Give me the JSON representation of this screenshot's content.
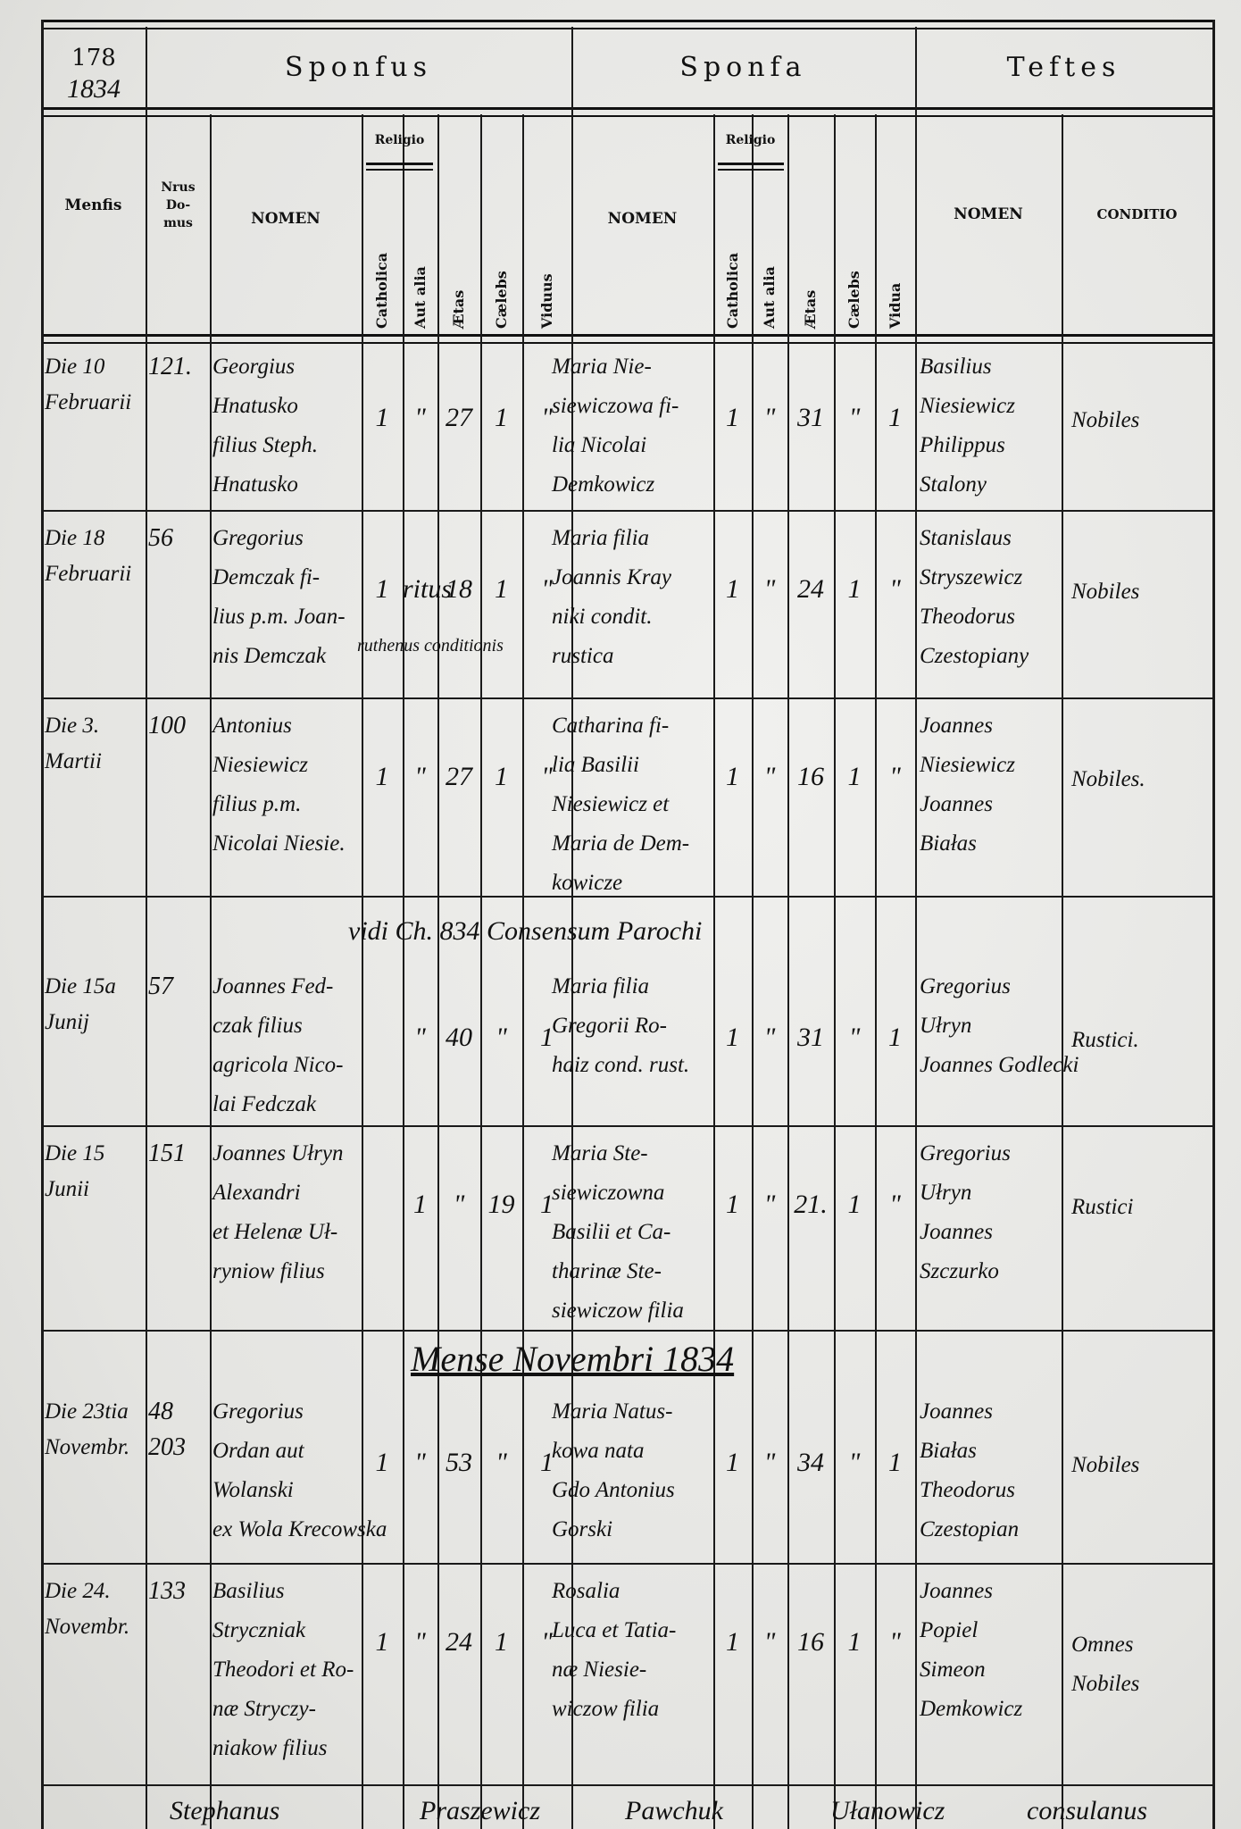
{
  "header": {
    "year_printed": "178",
    "year_handwritten": "1834",
    "sponsus": "Sponfus",
    "sponsa": "Sponfa",
    "testes": "Teftes",
    "mensis": "Menfis",
    "nrus_domus": "Nrus Do- mus",
    "groom_nomen": "NOMEN",
    "groom_religio": "Religio",
    "groom_catholica": "Catholica",
    "groom_aut_alia": "Aut alia",
    "groom_aetas": "Ætas",
    "groom_caelebs": "Cælebs",
    "groom_viduus": "Viduus",
    "bride_nomen": "NOMEN",
    "bride_religio": "Religio",
    "bride_catholica": "Catholica",
    "bride_aut_alia": "Aut alia",
    "bride_aetas": "Ætas",
    "bride_caelebs": "Cælebs",
    "bride_vidua": "Vidua",
    "testes_nomen": "NOMEN",
    "conditio": "CONDITIO"
  },
  "rows": [
    {
      "date": [
        "Die 10",
        "Februarii"
      ],
      "house": "121.",
      "groom": [
        "Georgius",
        "Hnatusko",
        "filius Steph.",
        "Hnatusko"
      ],
      "g": [
        "1",
        "\"",
        "27",
        "1",
        "\""
      ],
      "bride": [
        "Maria Nie-",
        "siewiczowa fi-",
        "lia Nicolai",
        "Demkowicz"
      ],
      "b": [
        "1",
        "\"",
        "31",
        "\"",
        "1"
      ],
      "witnesses": [
        "Basilius",
        "Niesiewicz",
        "Philippus",
        "Stalony"
      ],
      "conditio": [
        "Nobiles"
      ]
    },
    {
      "date": [
        "Die 18",
        "Februarii"
      ],
      "house": "56",
      "groom": [
        "Gregorius",
        "Demczak fi-",
        "lius p.m. Joan-",
        "nis Demczak"
      ],
      "g": [
        "1",
        "ritus",
        "18",
        "1",
        "\""
      ],
      "bride": [
        "Maria filia",
        "Joannis Kray",
        "niki condit.",
        "rustica"
      ],
      "b": [
        "1",
        "\"",
        "24",
        "1",
        "\""
      ],
      "witnesses": [
        "Stanislaus",
        "Stryszewicz",
        "Theodorus",
        "Czestopiany"
      ],
      "conditio": [
        "Nobiles"
      ],
      "extra": "ruthenus conditionis"
    },
    {
      "date": [
        "Die 3.",
        "Martii"
      ],
      "house": "100",
      "groom": [
        "Antonius",
        "Niesiewicz",
        "filius p.m.",
        "Nicolai Niesie."
      ],
      "g": [
        "1",
        "\"",
        "27",
        "1",
        "\""
      ],
      "bride": [
        "Catharina fi-",
        "lia Basilii",
        "Niesiewicz et",
        "Maria de Dem-",
        "kowicze"
      ],
      "b": [
        "1",
        "\"",
        "16",
        "1",
        "\""
      ],
      "witnesses": [
        "Joannes",
        "Niesiewicz",
        "Joannes",
        "Białas"
      ],
      "conditio": [
        "Nobiles."
      ]
    },
    {
      "note": "vidi Ch. 834 Consensum Parochi",
      "date": [
        "Die 15a",
        "Junij"
      ],
      "house": "57",
      "groom": [
        "Joannes Fed-",
        "czak filius",
        "agricola Nico-",
        "lai Fedczak"
      ],
      "g": [
        "\"",
        "40",
        "\"",
        "1"
      ],
      "bride": [
        "Maria filia",
        "Gregorii Ro-",
        "haiz cond. rust."
      ],
      "b": [
        "1",
        "\"",
        "31",
        "\"",
        "1"
      ],
      "witnesses": [
        "Gregorius",
        "Ułryn",
        "Joannes Godlecki"
      ],
      "conditio": [
        "Rustici."
      ]
    },
    {
      "date": [
        "Die 15",
        "Junii"
      ],
      "house": "151",
      "groom": [
        "Joannes Ułryn",
        "Alexandri",
        "et Helenæ Uł-",
        "ryniow filius"
      ],
      "g": [
        "1",
        "\"",
        "19",
        "1"
      ],
      "bride": [
        "Maria Ste-",
        "siewiczowna",
        "Basilii et Ca-",
        "tharinæ Ste-",
        "siewiczow filia"
      ],
      "b": [
        "1",
        "\"",
        "21.",
        "1",
        "\""
      ],
      "witnesses": [
        "Gregorius",
        "Ułryn",
        "Joannes",
        "Szczurko"
      ],
      "conditio": [
        "Rustici"
      ]
    },
    {
      "section": "Mense Novembri 1834",
      "date": [
        "Die 23tia",
        "Novembr."
      ],
      "house": "48 203",
      "groom": [
        "Gregorius",
        "Ordan aut",
        "Wolanski",
        "ex Wola Krecowska"
      ],
      "g": [
        "1",
        "\"",
        "53",
        "\"",
        "1"
      ],
      "bride": [
        "Maria Natus-",
        "kowa nata",
        "Gdo Antonius",
        "Gorski"
      ],
      "b": [
        "1",
        "\"",
        "34",
        "\"",
        "1"
      ],
      "witnesses": [
        "Joannes",
        "Białas",
        "Theodorus",
        "Czestopian"
      ],
      "conditio": [
        "Nobiles"
      ]
    },
    {
      "date": [
        "Die 24.",
        "Novembr."
      ],
      "house": "133",
      "groom": [
        "Basilius",
        "Stryczniak",
        "Theodori et Ro-",
        "næ Stryczy-",
        "niakow filius"
      ],
      "g": [
        "1",
        "\"",
        "24",
        "1",
        "\""
      ],
      "bride": [
        "Rosalia",
        "Luca et Tatia-",
        "næ Niesie-",
        "wiczow filia"
      ],
      "b": [
        "1",
        "\"",
        "16",
        "1",
        "\""
      ],
      "witnesses": [
        "Joannes",
        "Popiel",
        "Simeon",
        "Demkowicz"
      ],
      "conditio": [
        "Omnes",
        "Nobiles"
      ]
    }
  ],
  "footer_line": [
    "Stephanus",
    "Praszewicz",
    "Pawchuk",
    "Ułanowicz",
    "consulanus"
  ]
}
